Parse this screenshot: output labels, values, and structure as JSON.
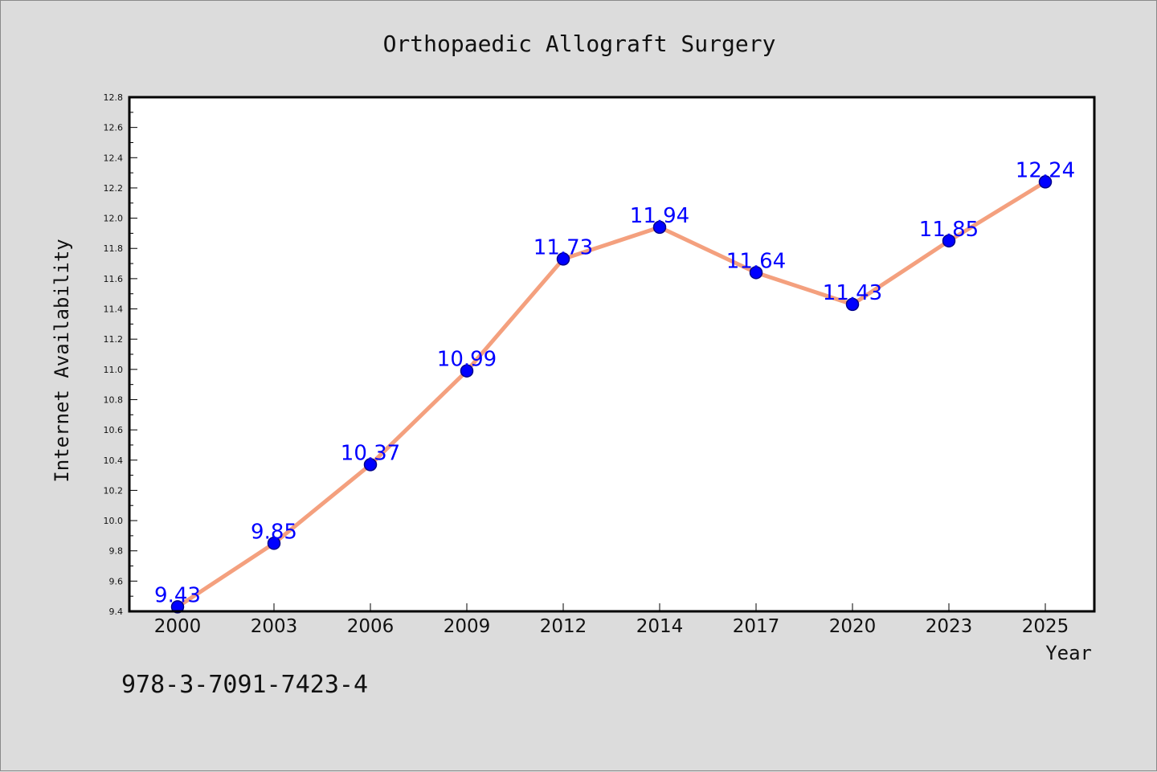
{
  "chart_data": {
    "type": "line",
    "title": "Orthopaedic Allograft Surgery",
    "xlabel": "Year",
    "ylabel": "Internet Availability",
    "categories": [
      "2000",
      "2003",
      "2006",
      "2009",
      "2012",
      "2014",
      "2017",
      "2020",
      "2023",
      "2025"
    ],
    "series": [
      {
        "values": [
          9.43,
          9.85,
          10.37,
          10.99,
          11.73,
          11.94,
          11.64,
          11.43,
          11.85,
          12.24
        ]
      }
    ],
    "data_labels": [
      "9.43",
      "9.85",
      "10.37",
      "10.99",
      "11.73",
      "11.94",
      "11.64",
      "11.43",
      "11.85",
      "12.24"
    ],
    "ylim": [
      9.4,
      12.8
    ],
    "yticks": [
      "9.4",
      "9.6",
      "9.8",
      "10.0",
      "10.2",
      "10.4",
      "10.6",
      "10.8",
      "11.0",
      "11.2",
      "11.4",
      "11.6",
      "11.8",
      "12.0",
      "12.2",
      "12.4",
      "12.6",
      "12.8"
    ],
    "grid": false,
    "legend": "none",
    "colors": {
      "line": "#f4a07e",
      "marker": "#0000ff",
      "marker_edge": "#00008b",
      "data_label": "#0000ff",
      "background": "#dcdcdc",
      "plot_background": "#ffffff"
    }
  },
  "annotation": {
    "isbn": "978-3-7091-7423-4"
  }
}
